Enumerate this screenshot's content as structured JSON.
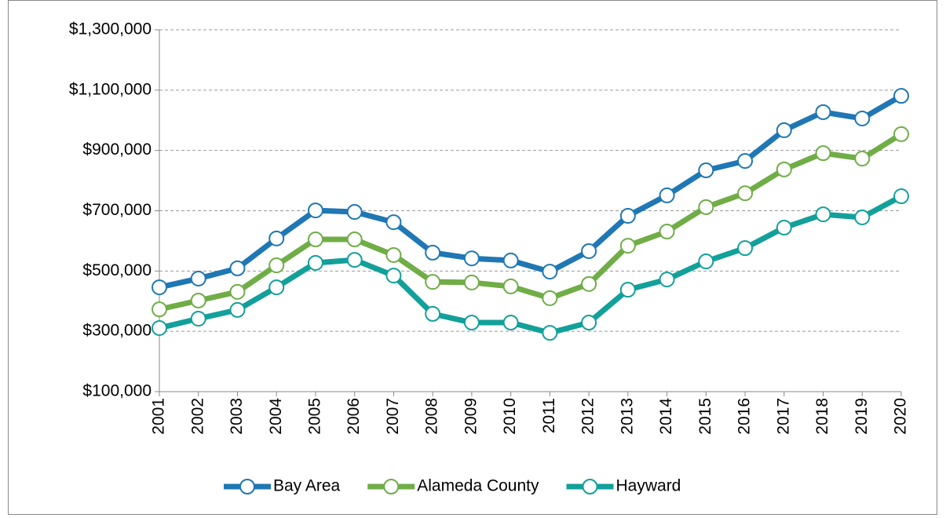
{
  "chart_data": {
    "type": "line",
    "categories": [
      "2001",
      "2002",
      "2003",
      "2004",
      "2005",
      "2006",
      "2007",
      "2008",
      "2009",
      "2010",
      "2011",
      "2012",
      "2013",
      "2014",
      "2015",
      "2016",
      "2017",
      "2018",
      "2019",
      "2020"
    ],
    "series": [
      {
        "name": "Bay Area",
        "color": "#1f77b4",
        "values": [
          446000,
          475000,
          509000,
          608000,
          701000,
          696000,
          662000,
          561000,
          542000,
          535000,
          498000,
          566000,
          683000,
          751000,
          834000,
          865000,
          967000,
          1027000,
          1006000,
          1081000
        ]
      },
      {
        "name": "Alameda County",
        "color": "#70ad47",
        "values": [
          373000,
          402000,
          431000,
          519000,
          605000,
          605000,
          553000,
          464000,
          462000,
          449000,
          410000,
          457000,
          584000,
          631000,
          712000,
          758000,
          837000,
          891000,
          873000,
          954000
        ]
      },
      {
        "name": "Hayward",
        "color": "#12a09a",
        "values": [
          311000,
          342000,
          371000,
          446000,
          527000,
          537000,
          485000,
          358000,
          329000,
          329000,
          295000,
          329000,
          438000,
          472000,
          532000,
          576000,
          644000,
          688000,
          678000,
          748000
        ]
      }
    ],
    "ylim": [
      100000,
      1300000
    ],
    "yticks": [
      {
        "value": 100000,
        "label": "$100,000"
      },
      {
        "value": 300000,
        "label": "$300,000"
      },
      {
        "value": 500000,
        "label": "$500,000"
      },
      {
        "value": 700000,
        "label": "$700,000"
      },
      {
        "value": 900000,
        "label": "$900,000"
      },
      {
        "value": 1100000,
        "label": "$1,100,000"
      },
      {
        "value": 1300000,
        "label": "$1,300,000"
      }
    ],
    "grid": true,
    "legend": "bottom"
  }
}
